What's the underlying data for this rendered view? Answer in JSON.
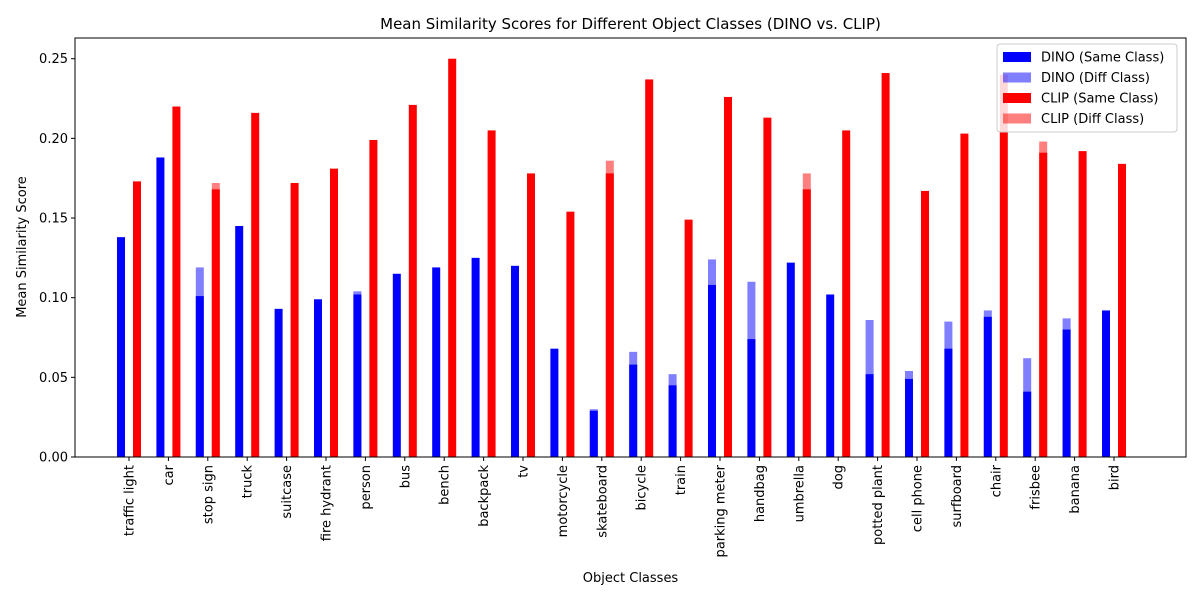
{
  "chart_data": {
    "type": "bar",
    "title": "Mean Similarity Scores for Different Object Classes (DINO vs. CLIP)",
    "xlabel": "Object Classes",
    "ylabel": "Mean Similarity Score",
    "ylim": [
      0,
      0.263
    ],
    "yticks": [
      "0.00",
      "0.05",
      "0.10",
      "0.15",
      "0.20",
      "0.25"
    ],
    "grid": false,
    "legend_position": "top-right",
    "categories": [
      "traffic light",
      "car",
      "stop sign",
      "truck",
      "suitcase",
      "fire hydrant",
      "person",
      "bus",
      "bench",
      "backpack",
      "tv",
      "motorcycle",
      "skateboard",
      "bicycle",
      "train",
      "parking meter",
      "handbag",
      "umbrella",
      "dog",
      "potted plant",
      "cell phone",
      "surfboard",
      "chair",
      "frisbee",
      "banana",
      "bird"
    ],
    "series": [
      {
        "name": "DINO (Same Class)",
        "color": "#0000ff",
        "values": [
          0.138,
          0.188,
          0.101,
          0.145,
          0.093,
          0.099,
          0.102,
          0.115,
          0.119,
          0.125,
          0.12,
          0.068,
          0.029,
          0.058,
          0.045,
          0.108,
          0.074,
          0.122,
          0.102,
          0.052,
          0.049,
          0.068,
          0.088,
          0.041,
          0.08,
          0.092
        ]
      },
      {
        "name": "DINO (Diff Class)",
        "color": "rgba(0,0,255,0.5)",
        "values": [
          0.0,
          0.0,
          0.119,
          0.0,
          0.0,
          0.0,
          0.104,
          0.0,
          0.0,
          0.0,
          0.0,
          0.0,
          0.03,
          0.066,
          0.052,
          0.124,
          0.11,
          0.0,
          0.0,
          0.086,
          0.054,
          0.085,
          0.092,
          0.062,
          0.087,
          0.0
        ]
      },
      {
        "name": "CLIP (Same Class)",
        "color": "#ff0000",
        "values": [
          0.173,
          0.22,
          0.168,
          0.216,
          0.172,
          0.181,
          0.199,
          0.221,
          0.25,
          0.205,
          0.178,
          0.154,
          0.178,
          0.237,
          0.149,
          0.226,
          0.213,
          0.168,
          0.205,
          0.241,
          0.167,
          0.203,
          0.24,
          0.191,
          0.192,
          0.184
        ]
      },
      {
        "name": "CLIP (Diff Class)",
        "color": "rgba(255,0,0,0.5)",
        "values": [
          0.0,
          0.0,
          0.172,
          0.0,
          0.0,
          0.0,
          0.0,
          0.0,
          0.0,
          0.0,
          0.0,
          0.0,
          0.186,
          0.0,
          0.0,
          0.0,
          0.0,
          0.178,
          0.0,
          0.0,
          0.0,
          0.0,
          0.0,
          0.198,
          0.0,
          0.0
        ]
      }
    ]
  }
}
